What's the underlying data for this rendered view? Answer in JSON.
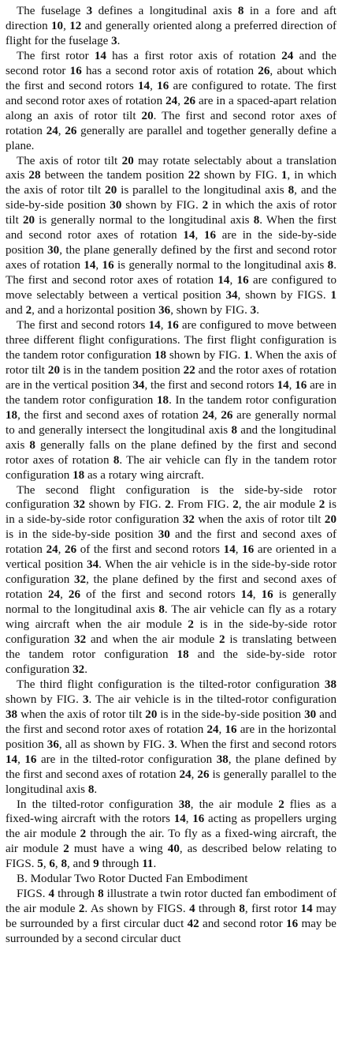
{
  "paragraphs": [
    [
      {
        "t": "The fuselage "
      },
      {
        "t": "3",
        "b": true
      },
      {
        "t": " defines a longitudinal axis "
      },
      {
        "t": "8",
        "b": true
      },
      {
        "t": " in a fore and aft direction "
      },
      {
        "t": "10",
        "b": true
      },
      {
        "t": ", "
      },
      {
        "t": "12",
        "b": true
      },
      {
        "t": " and generally oriented along a preferred direction of flight for the fuselage "
      },
      {
        "t": "3",
        "b": true
      },
      {
        "t": "."
      }
    ],
    [
      {
        "t": "The first rotor "
      },
      {
        "t": "14",
        "b": true
      },
      {
        "t": " has a first rotor axis of rotation "
      },
      {
        "t": "24",
        "b": true
      },
      {
        "t": " and the second rotor "
      },
      {
        "t": "16",
        "b": true
      },
      {
        "t": " has a second rotor axis of rotation "
      },
      {
        "t": "26",
        "b": true
      },
      {
        "t": ", about which the first and second rotors "
      },
      {
        "t": "14",
        "b": true
      },
      {
        "t": ", "
      },
      {
        "t": "16",
        "b": true
      },
      {
        "t": " are configured to rotate. The first and second rotor axes of rotation "
      },
      {
        "t": "24",
        "b": true
      },
      {
        "t": ", "
      },
      {
        "t": "26",
        "b": true
      },
      {
        "t": " are in a spaced-apart relation along an axis of rotor tilt "
      },
      {
        "t": "20",
        "b": true
      },
      {
        "t": ". The first and second rotor axes of rotation "
      },
      {
        "t": "24",
        "b": true
      },
      {
        "t": ", "
      },
      {
        "t": "26",
        "b": true
      },
      {
        "t": " generally are parallel and together generally define a plane."
      }
    ],
    [
      {
        "t": "The axis of rotor tilt "
      },
      {
        "t": "20",
        "b": true
      },
      {
        "t": " may rotate selectably about a translation axis "
      },
      {
        "t": "28",
        "b": true
      },
      {
        "t": " between the tandem position "
      },
      {
        "t": "22",
        "b": true
      },
      {
        "t": " shown by FIG. "
      },
      {
        "t": "1",
        "b": true
      },
      {
        "t": ", in which the axis of rotor tilt "
      },
      {
        "t": "20",
        "b": true
      },
      {
        "t": " is parallel to the longitudinal axis "
      },
      {
        "t": "8",
        "b": true
      },
      {
        "t": ", and the side-by-side position "
      },
      {
        "t": "30",
        "b": true
      },
      {
        "t": " shown by FIG. "
      },
      {
        "t": "2",
        "b": true
      },
      {
        "t": " in which the axis of rotor tilt "
      },
      {
        "t": "20",
        "b": true
      },
      {
        "t": " is generally normal to the longitudinal axis "
      },
      {
        "t": "8",
        "b": true
      },
      {
        "t": ". When the first and second rotor axes of rotation "
      },
      {
        "t": "14",
        "b": true
      },
      {
        "t": ", "
      },
      {
        "t": "16",
        "b": true
      },
      {
        "t": " are in the side-by-side position "
      },
      {
        "t": "30",
        "b": true
      },
      {
        "t": ", the plane generally defined by the first and second rotor axes of rotation "
      },
      {
        "t": "14",
        "b": true
      },
      {
        "t": ", "
      },
      {
        "t": "16",
        "b": true
      },
      {
        "t": " is generally normal to the longitudinal axis "
      },
      {
        "t": "8",
        "b": true
      },
      {
        "t": ". The first and second rotor axes of rotation "
      },
      {
        "t": "14",
        "b": true
      },
      {
        "t": ", "
      },
      {
        "t": "16",
        "b": true
      },
      {
        "t": " are configured to move selectably between a vertical position "
      },
      {
        "t": "34",
        "b": true
      },
      {
        "t": ", shown by FIGS. "
      },
      {
        "t": "1",
        "b": true
      },
      {
        "t": " and "
      },
      {
        "t": "2",
        "b": true
      },
      {
        "t": ", and a horizontal position "
      },
      {
        "t": "36",
        "b": true
      },
      {
        "t": ", shown by FIG. "
      },
      {
        "t": "3",
        "b": true
      },
      {
        "t": "."
      }
    ],
    [
      {
        "t": "The first and second rotors "
      },
      {
        "t": "14",
        "b": true
      },
      {
        "t": ", "
      },
      {
        "t": "16",
        "b": true
      },
      {
        "t": " are configured to move between three different flight configurations. The first flight configuration is the tandem rotor configuration "
      },
      {
        "t": "18",
        "b": true
      },
      {
        "t": " shown by FIG. "
      },
      {
        "t": "1",
        "b": true
      },
      {
        "t": ". When the axis of rotor tilt "
      },
      {
        "t": "20",
        "b": true
      },
      {
        "t": " is in the tandem position "
      },
      {
        "t": "22",
        "b": true
      },
      {
        "t": " and the rotor axes of rotation are in the vertical position "
      },
      {
        "t": "34",
        "b": true
      },
      {
        "t": ", the first and second rotors "
      },
      {
        "t": "14",
        "b": true
      },
      {
        "t": ", "
      },
      {
        "t": "16",
        "b": true
      },
      {
        "t": " are in the tandem rotor configuration "
      },
      {
        "t": "18",
        "b": true
      },
      {
        "t": ". In the tandem rotor configuration "
      },
      {
        "t": "18",
        "b": true
      },
      {
        "t": ", the first and second axes of rotation "
      },
      {
        "t": "24",
        "b": true
      },
      {
        "t": ", "
      },
      {
        "t": "26",
        "b": true
      },
      {
        "t": " are generally normal to and generally intersect the longitudinal axis "
      },
      {
        "t": "8",
        "b": true
      },
      {
        "t": " and the longitudinal axis "
      },
      {
        "t": "8",
        "b": true
      },
      {
        "t": " generally falls on the plane defined by the first and second rotor axes of rotation "
      },
      {
        "t": "8",
        "b": true
      },
      {
        "t": ". The air vehicle can fly in the tandem rotor configuration "
      },
      {
        "t": "18",
        "b": true
      },
      {
        "t": " as a rotary wing aircraft."
      }
    ],
    [
      {
        "t": "The second flight configuration is the side-by-side rotor configuration "
      },
      {
        "t": "32",
        "b": true
      },
      {
        "t": " shown by FIG. "
      },
      {
        "t": "2",
        "b": true
      },
      {
        "t": ". From FIG. "
      },
      {
        "t": "2",
        "b": true
      },
      {
        "t": ", the air module "
      },
      {
        "t": "2",
        "b": true
      },
      {
        "t": " is in a side-by-side rotor configuration "
      },
      {
        "t": "32",
        "b": true
      },
      {
        "t": " when the axis of rotor tilt "
      },
      {
        "t": "20",
        "b": true
      },
      {
        "t": " is in the side-by-side position "
      },
      {
        "t": "30",
        "b": true
      },
      {
        "t": " and the first and second axes of rotation "
      },
      {
        "t": "24",
        "b": true
      },
      {
        "t": ", "
      },
      {
        "t": "26",
        "b": true
      },
      {
        "t": " of the first and second rotors "
      },
      {
        "t": "14",
        "b": true
      },
      {
        "t": ", "
      },
      {
        "t": "16",
        "b": true
      },
      {
        "t": " are oriented in a vertical position "
      },
      {
        "t": "34",
        "b": true
      },
      {
        "t": ". When the air vehicle is in the side-by-side rotor configuration "
      },
      {
        "t": "32",
        "b": true
      },
      {
        "t": ", the plane defined by the first and second axes of rotation "
      },
      {
        "t": "24",
        "b": true
      },
      {
        "t": ", "
      },
      {
        "t": "26",
        "b": true
      },
      {
        "t": " of the first and second rotors "
      },
      {
        "t": "14",
        "b": true
      },
      {
        "t": ", "
      },
      {
        "t": "16",
        "b": true
      },
      {
        "t": " is generally normal to the longitudinal axis "
      },
      {
        "t": "8",
        "b": true
      },
      {
        "t": ". The air vehicle can fly as a rotary wing aircraft when the air module "
      },
      {
        "t": "2",
        "b": true
      },
      {
        "t": " is in the side-by-side rotor configuration "
      },
      {
        "t": "32",
        "b": true
      },
      {
        "t": " and when the air module "
      },
      {
        "t": "2",
        "b": true
      },
      {
        "t": " is translating between the tandem rotor configuration "
      },
      {
        "t": "18",
        "b": true
      },
      {
        "t": " and the side-by-side rotor configuration "
      },
      {
        "t": "32",
        "b": true
      },
      {
        "t": "."
      }
    ],
    [
      {
        "t": "The third flight configuration is the tilted-rotor configuration "
      },
      {
        "t": "38",
        "b": true
      },
      {
        "t": " shown by FIG. "
      },
      {
        "t": "3",
        "b": true
      },
      {
        "t": ". The air vehicle is in the tilted-rotor configuration "
      },
      {
        "t": "38",
        "b": true
      },
      {
        "t": " when the axis of rotor tilt "
      },
      {
        "t": "20",
        "b": true
      },
      {
        "t": " is in the side-by-side position "
      },
      {
        "t": "30",
        "b": true
      },
      {
        "t": " and the first and second rotor axes of rotation "
      },
      {
        "t": "24",
        "b": true
      },
      {
        "t": ", "
      },
      {
        "t": "16",
        "b": true
      },
      {
        "t": " are in the horizontal position "
      },
      {
        "t": "36",
        "b": true
      },
      {
        "t": ", all as shown by FIG. "
      },
      {
        "t": "3",
        "b": true
      },
      {
        "t": ". When the first and second rotors "
      },
      {
        "t": "14",
        "b": true
      },
      {
        "t": ", "
      },
      {
        "t": "16",
        "b": true
      },
      {
        "t": " are in the tilted-rotor configuration "
      },
      {
        "t": "38",
        "b": true
      },
      {
        "t": ", the plane defined by the first and second axes of rotation "
      },
      {
        "t": "24",
        "b": true
      },
      {
        "t": ", "
      },
      {
        "t": "26",
        "b": true
      },
      {
        "t": " is generally parallel to the longitudinal axis "
      },
      {
        "t": "8",
        "b": true
      },
      {
        "t": "."
      }
    ],
    [
      {
        "t": "In the tilted-rotor configuration "
      },
      {
        "t": "38",
        "b": true
      },
      {
        "t": ", the air module "
      },
      {
        "t": "2",
        "b": true
      },
      {
        "t": " flies as a fixed-wing aircraft with the rotors "
      },
      {
        "t": "14",
        "b": true
      },
      {
        "t": ", "
      },
      {
        "t": "16",
        "b": true
      },
      {
        "t": " acting as propellers urging the air module "
      },
      {
        "t": "2",
        "b": true
      },
      {
        "t": " through the air. To fly as a fixed-wing aircraft, the air module "
      },
      {
        "t": "2",
        "b": true
      },
      {
        "t": " must have a wing "
      },
      {
        "t": "40",
        "b": true
      },
      {
        "t": ", as described below relating to FIGS. "
      },
      {
        "t": "5",
        "b": true
      },
      {
        "t": ", "
      },
      {
        "t": "6",
        "b": true
      },
      {
        "t": ", "
      },
      {
        "t": "8",
        "b": true
      },
      {
        "t": ", and "
      },
      {
        "t": "9",
        "b": true
      },
      {
        "t": " through "
      },
      {
        "t": "11",
        "b": true
      },
      {
        "t": "."
      }
    ]
  ],
  "heading": "B. Modular Two Rotor Ducted Fan Embodiment",
  "last_paragraph": [
    {
      "t": "FIGS. "
    },
    {
      "t": "4",
      "b": true
    },
    {
      "t": " through "
    },
    {
      "t": "8",
      "b": true
    },
    {
      "t": " illustrate a twin rotor ducted fan embodiment of the air module "
    },
    {
      "t": "2",
      "b": true
    },
    {
      "t": ". As shown by FIGS. "
    },
    {
      "t": "4",
      "b": true
    },
    {
      "t": " through "
    },
    {
      "t": "8",
      "b": true
    },
    {
      "t": ", first rotor "
    },
    {
      "t": "14",
      "b": true
    },
    {
      "t": " may be surrounded by a first circular duct "
    },
    {
      "t": "42",
      "b": true
    },
    {
      "t": " and second rotor "
    },
    {
      "t": "16",
      "b": true
    },
    {
      "t": " may be surrounded by a second circular duct"
    }
  ]
}
